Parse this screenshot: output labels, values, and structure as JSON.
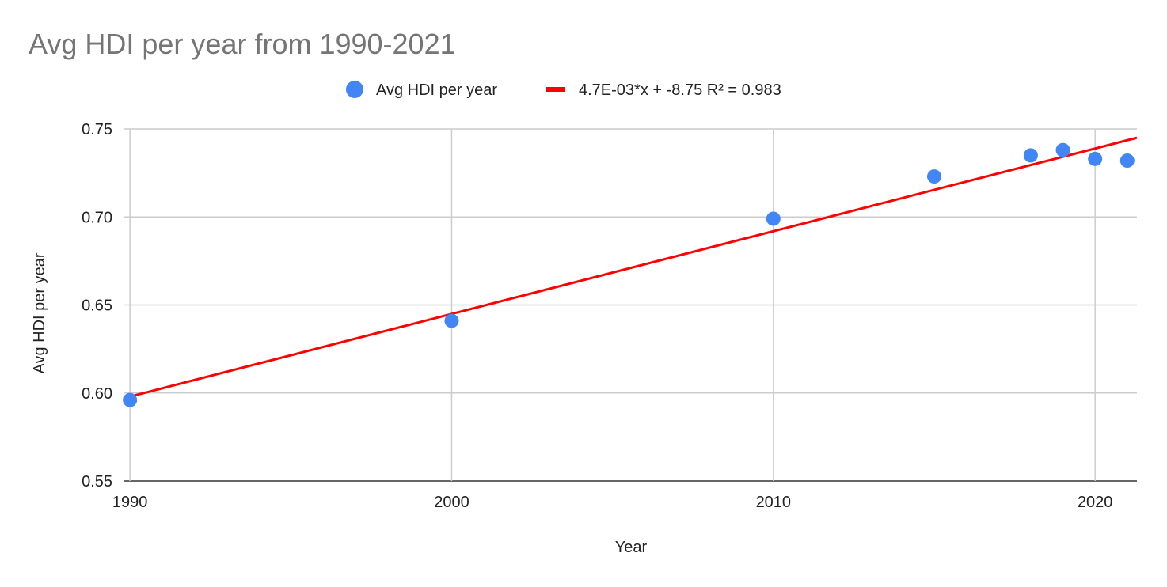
{
  "chart_data": {
    "type": "scatter",
    "title": "Avg HDI per year from 1990-2021",
    "xlabel": "Year",
    "ylabel": "Avg HDI per year",
    "xlim": [
      1989.8,
      2021.3
    ],
    "ylim": [
      0.55,
      0.75
    ],
    "x_ticks": [
      "1990",
      "2000",
      "2010",
      "2020"
    ],
    "y_ticks": [
      "0.55",
      "0.60",
      "0.65",
      "0.70",
      "0.75"
    ],
    "x_tick_values": [
      1990,
      2000,
      2010,
      2020
    ],
    "y_tick_values": [
      0.55,
      0.6,
      0.65,
      0.7,
      0.75
    ],
    "grid": true,
    "legend_position": "top",
    "series": [
      {
        "name": "Avg HDI per year",
        "color": "#4285f4",
        "points": [
          {
            "x": 1990,
            "y": 0.596
          },
          {
            "x": 2000,
            "y": 0.641
          },
          {
            "x": 2010,
            "y": 0.699
          },
          {
            "x": 2015,
            "y": 0.723
          },
          {
            "x": 2018,
            "y": 0.735
          },
          {
            "x": 2019,
            "y": 0.738
          },
          {
            "x": 2020,
            "y": 0.733
          },
          {
            "x": 2021,
            "y": 0.732
          }
        ]
      }
    ],
    "trendline": {
      "label": "4.7E-03*x + -8.75 R² = 0.983",
      "color": "#ff0000",
      "slope": 0.0047,
      "intercept": -8.75,
      "x_range": [
        1989.8,
        2021.3
      ],
      "y_range": [
        0.597,
        0.745
      ]
    }
  }
}
